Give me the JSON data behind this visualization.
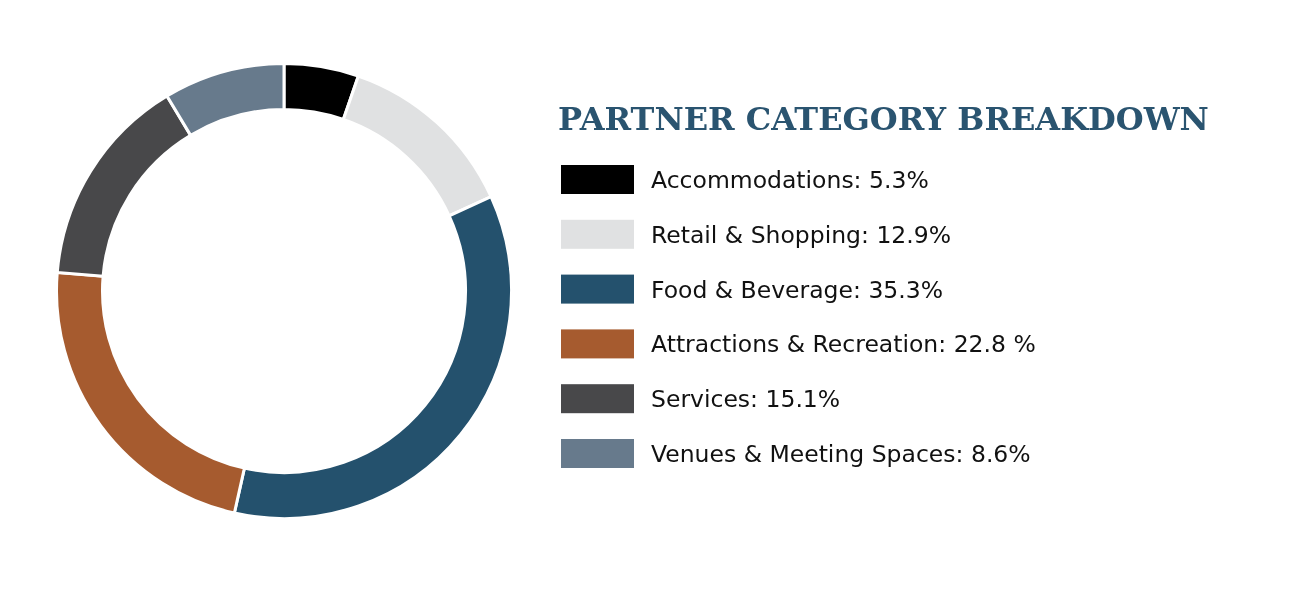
{
  "chart_data": {
    "type": "donut",
    "title": "PARTNER CATEGORY BREAKDOWN",
    "categories": [
      "Accommodations",
      "Retail & Shopping",
      "Food & Beverage",
      "Attractions & Recreation",
      "Services",
      "Venues & Meeting Spaces"
    ],
    "values": [
      5.3,
      12.9,
      35.3,
      22.8,
      15.1,
      8.6
    ],
    "value_labels": [
      "5.3%",
      "12.9%",
      "35.3%",
      "22.8 %",
      "15.1%",
      "8.6%"
    ],
    "colors": [
      "#000000",
      "#e0e1e2",
      "#24516d",
      "#a65b2f",
      "#48484a",
      "#677a8c"
    ],
    "legend": "right"
  }
}
